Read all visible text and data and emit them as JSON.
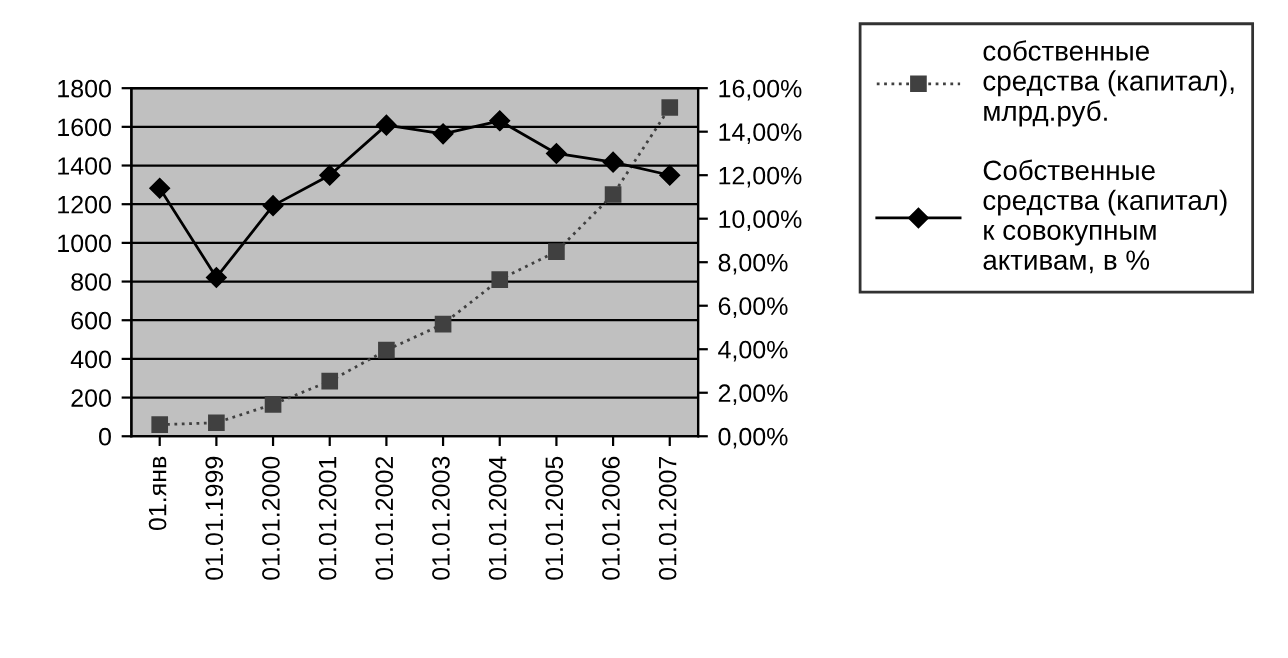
{
  "chart_data": {
    "type": "line",
    "categories": [
      "01.янв",
      "01.01.1999",
      "01.01.2000",
      "01.01.2001",
      "01.01.2002",
      "01.01.2003",
      "01.01.2004",
      "01.01.2005",
      "01.01.2006",
      "01.01.2007"
    ],
    "series": [
      {
        "name": "собственные\nсредства (капитал),\nмлрд.руб.",
        "color": "#404040",
        "marker": "square",
        "line_style": "dotted",
        "values": [
          60,
          70,
          165,
          285,
          445,
          580,
          810,
          955,
          1250,
          1700
        ]
      },
      {
        "name": "Собственные\nсредства (капитал)\nк совокупным\nактивам, в %",
        "color": "#000000",
        "marker": "diamond",
        "line_style": "solid",
        "axis": "y2",
        "values": [
          11.4,
          7.3,
          10.6,
          12.0,
          14.3,
          13.9,
          14.5,
          13.0,
          12.6,
          12.0
        ]
      }
    ],
    "ylim": [
      0,
      1800
    ],
    "yticks": [
      0,
      200,
      400,
      600,
      800,
      1000,
      1200,
      1400,
      1600,
      1800
    ],
    "y2lim": [
      0,
      16
    ],
    "y2ticks": [
      {
        "value": 0,
        "label": "0,00%"
      },
      {
        "value": 2,
        "label": "2,00%"
      },
      {
        "value": 4,
        "label": "4,00%"
      },
      {
        "value": 6,
        "label": "6,00%"
      },
      {
        "value": 8,
        "label": "8,00%"
      },
      {
        "value": 10,
        "label": "10,00%"
      },
      {
        "value": 12,
        "label": "12,00%"
      },
      {
        "value": 14,
        "label": "14,00%"
      },
      {
        "value": 16,
        "label": "16,00%"
      }
    ],
    "grid": "y",
    "legend": "right"
  }
}
